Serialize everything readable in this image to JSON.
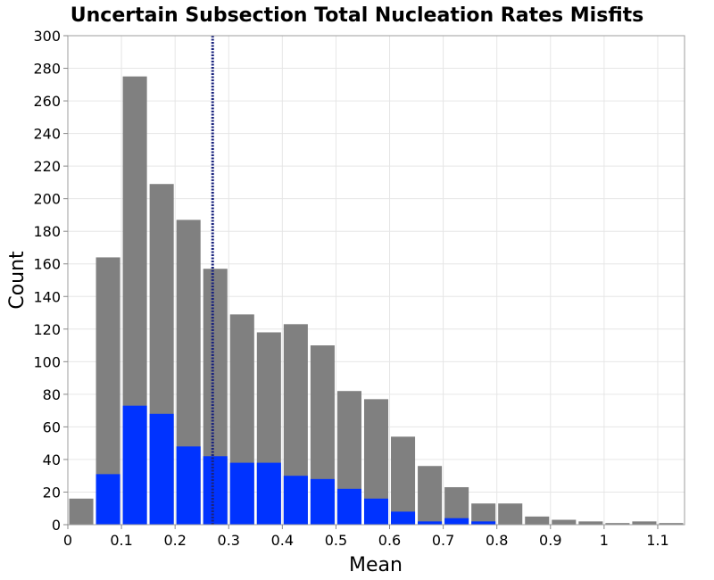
{
  "chart_data": {
    "type": "bar",
    "title": "Uncertain Subsection Total Nucleation Rates Misfits",
    "xlabel": "Mean",
    "ylabel": "Count",
    "xlim": [
      0,
      1.15
    ],
    "ylim": [
      0,
      300
    ],
    "bin_width": 0.05,
    "x_ticks": [
      "0",
      "0.1",
      "0.2",
      "0.3",
      "0.4",
      "0.5",
      "0.6",
      "0.7",
      "0.8",
      "0.9",
      "1",
      "1.1"
    ],
    "y_ticks": [
      "0",
      "20",
      "40",
      "60",
      "80",
      "100",
      "120",
      "140",
      "160",
      "180",
      "200",
      "220",
      "240",
      "260",
      "280",
      "300"
    ],
    "grid": true,
    "legend": "none",
    "bin_starts": [
      0,
      0.05,
      0.1,
      0.15,
      0.2,
      0.25,
      0.3,
      0.35,
      0.4,
      0.45,
      0.5,
      0.55,
      0.6,
      0.65,
      0.7,
      0.75,
      0.8,
      0.85,
      0.9,
      0.95,
      1.0,
      1.05,
      1.1
    ],
    "series": [
      {
        "color": "#808080",
        "values": [
          16,
          164,
          275,
          209,
          187,
          157,
          129,
          118,
          123,
          110,
          82,
          77,
          54,
          36,
          23,
          13,
          13,
          5,
          3,
          2,
          1,
          2,
          1
        ]
      },
      {
        "color": "#0033ff",
        "values": [
          0,
          31,
          73,
          68,
          48,
          42,
          38,
          38,
          30,
          28,
          22,
          16,
          8,
          2,
          4,
          2,
          0,
          0,
          0,
          0,
          0,
          0,
          0
        ]
      }
    ],
    "reference_line": {
      "x": 0.27,
      "style": "dotted",
      "color": "#1a237e"
    }
  }
}
